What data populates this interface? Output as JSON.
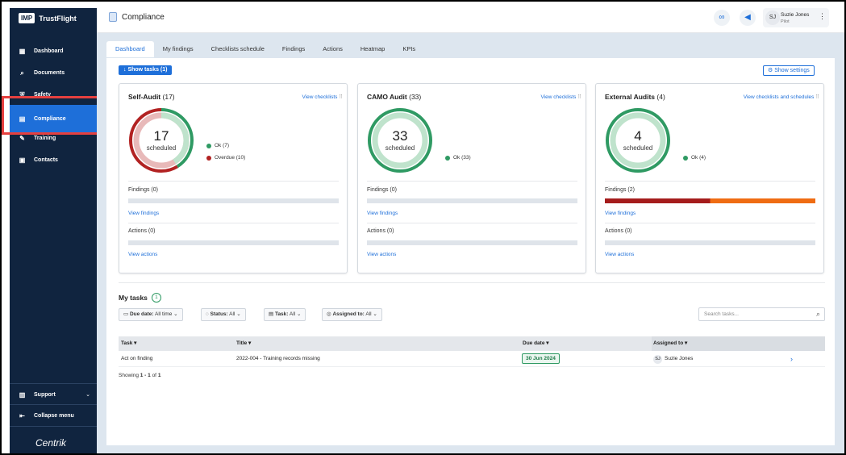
{
  "brand": {
    "mark": "IMP",
    "name": "TrustFlight"
  },
  "sidebar": {
    "items": [
      {
        "label": "Dashboard",
        "icon": "▦"
      },
      {
        "label": "Documents",
        "icon": "⌕"
      },
      {
        "label": "Safety",
        "icon": "⛨"
      },
      {
        "label": "Compliance",
        "icon": "▤"
      },
      {
        "label": "Training",
        "icon": "✎"
      },
      {
        "label": "Contacts",
        "icon": "▣"
      }
    ],
    "support": "Support",
    "collapse": "Collapse menu",
    "footer_logo": "Centrik"
  },
  "header": {
    "title": "Compliance",
    "link_icon": "∞",
    "megaphone_icon": "◀",
    "user": {
      "initials": "SJ",
      "name": "Suzie Jones",
      "role": "Pilot"
    }
  },
  "tabs": [
    "Dashboard",
    "My findings",
    "Checklists schedule",
    "Findings",
    "Actions",
    "Heatmap",
    "KPIs"
  ],
  "toolbar": {
    "show_tasks": "↓ Show tasks (1)",
    "show_settings": "⚙ Show settings"
  },
  "cards": [
    {
      "title": "Self-Audit",
      "count": "(17)",
      "link": "View checklists",
      "number": "17",
      "sub": "scheduled",
      "ok": 7,
      "overdue": 10,
      "ok_label": "Ok (7)",
      "overdue_label": "Overdue (10)",
      "findings": "Findings (0)",
      "actions": "Actions (0)",
      "view_findings": "View findings",
      "view_actions": "View actions"
    },
    {
      "title": "CAMO Audit",
      "count": "(33)",
      "link": "View checklists",
      "number": "33",
      "sub": "scheduled",
      "ok": 33,
      "overdue": 0,
      "ok_label": "Ok (33)",
      "findings": "Findings (0)",
      "actions": "Actions (0)",
      "view_findings": "View findings",
      "view_actions": "View actions"
    },
    {
      "title": "External Audits",
      "count": "(4)",
      "link": "View checklists and schedules",
      "number": "4",
      "sub": "scheduled",
      "ok": 4,
      "overdue": 0,
      "ok_label": "Ok (4)",
      "findings": "Findings (2)",
      "actions": "Actions (0)",
      "view_findings": "View findings",
      "view_actions": "View actions"
    }
  ],
  "colors": {
    "ok": "#2f9a63",
    "overdue": "#b22222",
    "finding_red": "#a51c1c",
    "finding_orange": "#ef6c13",
    "accent": "#1e6fd9"
  },
  "tasks": {
    "title": "My tasks",
    "count": "1",
    "filters": [
      {
        "label": "Due date:",
        "value": "All time"
      },
      {
        "label": "Status:",
        "value": "All"
      },
      {
        "label": "Task:",
        "value": "All"
      },
      {
        "label": "Assigned to:",
        "value": "All"
      }
    ],
    "search_placeholder": "Search tasks...",
    "columns": [
      "Task ▾",
      "Title ▾",
      "Due date ▾",
      "Assigned to ▾"
    ],
    "rows": [
      {
        "task": "Act on finding",
        "title": "2022-004 - Training records missing",
        "due": "30 Jun 2024",
        "assignee_initials": "SJ",
        "assignee": "Suzie Jones"
      }
    ],
    "showing_prefix": "Showing ",
    "showing_range": "1 - 1",
    "showing_mid": " of ",
    "showing_total": "1"
  }
}
